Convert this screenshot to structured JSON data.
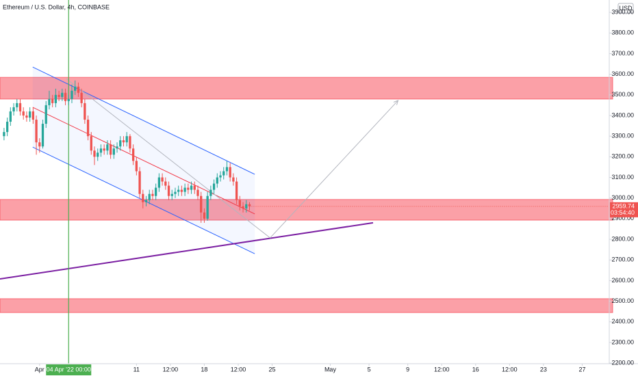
{
  "chart_data": {
    "type": "candlestick",
    "title": "Ethereum / U.S. Dollar, 4h, COINBASE",
    "currency": "USD",
    "x": [
      "2022-03-28 08:00",
      "2022-03-28 16:00",
      "2022-03-29 00:00",
      "2022-03-29 08:00",
      "2022-03-29 16:00",
      "2022-03-30 00:00",
      "2022-03-30 08:00",
      "2022-03-30 16:00",
      "2022-03-31 00:00",
      "2022-03-31 08:00",
      "2022-03-31 16:00",
      "2022-04-01 00:00",
      "2022-04-01 08:00",
      "2022-04-01 16:00",
      "2022-04-02 00:00",
      "2022-04-02 08:00",
      "2022-04-02 16:00",
      "2022-04-03 00:00",
      "2022-04-03 08:00",
      "2022-04-03 16:00",
      "2022-04-04 00:00",
      "2022-04-04 08:00",
      "2022-04-04 16:00",
      "2022-04-05 00:00",
      "2022-04-05 08:00",
      "2022-04-05 16:00",
      "2022-04-06 00:00",
      "2022-04-06 08:00",
      "2022-04-06 16:00",
      "2022-04-07 00:00",
      "2022-04-07 08:00",
      "2022-04-07 16:00",
      "2022-04-08 00:00",
      "2022-04-08 08:00",
      "2022-04-08 16:00",
      "2022-04-09 00:00",
      "2022-04-09 08:00",
      "2022-04-09 16:00",
      "2022-04-10 00:00",
      "2022-04-10 08:00",
      "2022-04-10 16:00",
      "2022-04-11 00:00",
      "2022-04-11 08:00",
      "2022-04-11 16:00",
      "2022-04-12 00:00",
      "2022-04-12 08:00",
      "2022-04-12 16:00",
      "2022-04-13 00:00",
      "2022-04-13 08:00",
      "2022-04-13 16:00",
      "2022-04-14 00:00",
      "2022-04-14 08:00",
      "2022-04-14 16:00",
      "2022-04-15 00:00",
      "2022-04-15 08:00",
      "2022-04-15 16:00",
      "2022-04-16 00:00",
      "2022-04-16 08:00",
      "2022-04-16 16:00",
      "2022-04-17 00:00",
      "2022-04-17 08:00",
      "2022-04-17 16:00",
      "2022-04-18 00:00",
      "2022-04-18 08:00",
      "2022-04-18 16:00",
      "2022-04-19 00:00",
      "2022-04-19 08:00",
      "2022-04-19 16:00",
      "2022-04-20 00:00",
      "2022-04-20 08:00",
      "2022-04-20 16:00",
      "2022-04-21 00:00",
      "2022-04-21 08:00",
      "2022-04-21 16:00",
      "2022-04-22 00:00",
      "2022-04-22 08:00",
      "2022-04-22 16:00"
    ],
    "open": [
      3300,
      3320,
      3370,
      3420,
      3440,
      3460,
      3420,
      3400,
      3390,
      3420,
      3380,
      3270,
      3250,
      3360,
      3450,
      3480,
      3460,
      3500,
      3490,
      3510,
      3470,
      3480,
      3520,
      3540,
      3510,
      3460,
      3380,
      3300,
      3230,
      3200,
      3220,
      3240,
      3230,
      3260,
      3210,
      3240,
      3250,
      3280,
      3270,
      3300,
      3240,
      3180,
      3130,
      3020,
      2980,
      2990,
      3020,
      3010,
      3050,
      3100,
      3080,
      3060,
      3010,
      3020,
      3030,
      3040,
      3030,
      3050,
      3040,
      3060,
      3040,
      3010,
      2930,
      2900,
      3010,
      3040,
      3070,
      3100,
      3110,
      3130,
      3150,
      3100,
      3080,
      2990,
      2960,
      2950,
      2970
    ],
    "high": [
      3340,
      3390,
      3440,
      3460,
      3480,
      3480,
      3440,
      3420,
      3440,
      3440,
      3400,
      3290,
      3380,
      3470,
      3520,
      3500,
      3530,
      3520,
      3530,
      3530,
      3500,
      3550,
      3570,
      3560,
      3530,
      3480,
      3400,
      3320,
      3250,
      3240,
      3260,
      3260,
      3280,
      3280,
      3260,
      3270,
      3300,
      3300,
      3320,
      3310,
      3260,
      3200,
      3150,
      3040,
      3010,
      3040,
      3040,
      3070,
      3120,
      3120,
      3100,
      3080,
      3040,
      3050,
      3060,
      3060,
      3070,
      3070,
      3080,
      3080,
      3060,
      3030,
      2950,
      3030,
      3060,
      3090,
      3120,
      3130,
      3150,
      3180,
      3170,
      3120,
      3100,
      3010,
      2980,
      2990,
      2980
    ],
    "low": [
      3280,
      3300,
      3350,
      3400,
      3420,
      3400,
      3380,
      3370,
      3370,
      3360,
      3210,
      3220,
      3240,
      3340,
      3430,
      3440,
      3440,
      3470,
      3470,
      3450,
      3450,
      3460,
      3500,
      3490,
      3440,
      3360,
      3280,
      3210,
      3160,
      3180,
      3200,
      3210,
      3210,
      3190,
      3190,
      3220,
      3230,
      3250,
      3250,
      3220,
      3160,
      3110,
      3000,
      2950,
      2960,
      2970,
      2990,
      2990,
      3030,
      3060,
      3040,
      2990,
      2990,
      3000,
      3010,
      3010,
      3010,
      3020,
      3020,
      3020,
      2990,
      2880,
      2880,
      2890,
      2990,
      3020,
      3050,
      3080,
      3090,
      3110,
      3080,
      3060,
      2970,
      2940,
      2930,
      2930,
      2940
    ],
    "close": [
      3320,
      3370,
      3420,
      3440,
      3460,
      3420,
      3400,
      3390,
      3420,
      3380,
      3270,
      3250,
      3360,
      3450,
      3480,
      3460,
      3500,
      3490,
      3510,
      3470,
      3480,
      3520,
      3540,
      3510,
      3460,
      3380,
      3300,
      3230,
      3200,
      3220,
      3240,
      3230,
      3260,
      3210,
      3240,
      3250,
      3280,
      3270,
      3300,
      3240,
      3180,
      3130,
      3020,
      2980,
      2990,
      3020,
      3010,
      3050,
      3100,
      3080,
      3060,
      3010,
      3020,
      3030,
      3040,
      3030,
      3050,
      3040,
      3060,
      3040,
      3010,
      2930,
      2900,
      3010,
      3040,
      3070,
      3100,
      3110,
      3130,
      3150,
      3100,
      3080,
      2990,
      2960,
      2950,
      2970,
      2959.74
    ],
    "up_color": "#26a69a",
    "down_color": "#ef5350",
    "xlim": [
      "2022-03-27 22:00",
      "2022-05-29 19:00"
    ],
    "ylim": [
      2197,
      3960
    ],
    "yticks": [
      {
        "value": 2200,
        "label": "2200.00"
      },
      {
        "value": 2300,
        "label": "2300.00"
      },
      {
        "value": 2400,
        "label": "2400.00"
      },
      {
        "value": 2500,
        "label": "2500.00"
      },
      {
        "value": 2600,
        "label": "2600.00"
      },
      {
        "value": 2700,
        "label": "2700.00"
      },
      {
        "value": 2800,
        "label": "2800.00"
      },
      {
        "value": 2900,
        "label": "2900.00"
      },
      {
        "value": 3000,
        "label": "3000.00"
      },
      {
        "value": 3100,
        "label": "3100.00"
      },
      {
        "value": 3200,
        "label": "3200.00"
      },
      {
        "value": 3300,
        "label": "3300.00"
      },
      {
        "value": 3400,
        "label": "3400.00"
      },
      {
        "value": 3500,
        "label": "3500.00"
      },
      {
        "value": 3600,
        "label": "3600.00"
      },
      {
        "value": 3700,
        "label": "3700.00"
      },
      {
        "value": 3800,
        "label": "3800.00"
      },
      {
        "value": 3900,
        "label": "3900.00"
      }
    ],
    "xticks": [
      {
        "value": "2022-04-01 00:00",
        "label": "Apr"
      },
      {
        "value": "2022-04-11 00:00",
        "label": "11"
      },
      {
        "value": "2022-04-14 12:00",
        "label": "12:00"
      },
      {
        "value": "2022-04-18 00:00",
        "label": "18"
      },
      {
        "value": "2022-04-21 12:00",
        "label": "12:00"
      },
      {
        "value": "2022-04-25 00:00",
        "label": "25"
      },
      {
        "value": "2022-05-01 00:00",
        "label": "May"
      },
      {
        "value": "2022-05-05 00:00",
        "label": "5"
      },
      {
        "value": "2022-05-09 00:00",
        "label": "9"
      },
      {
        "value": "2022-05-12 12:00",
        "label": "12:00"
      },
      {
        "value": "2022-05-16 00:00",
        "label": "16"
      },
      {
        "value": "2022-05-19 12:00",
        "label": "12:00"
      },
      {
        "value": "2022-05-23 00:00",
        "label": "23"
      },
      {
        "value": "2022-05-27 00:00",
        "label": "27"
      }
    ],
    "crosshair": {
      "x": "2022-04-04 00:00",
      "label": "04 Apr '22 00:00"
    },
    "countdown": "03:54:40",
    "zones": [
      {
        "low": 3480,
        "high": 3585
      },
      {
        "low": 2893,
        "high": 2993
      },
      {
        "low": 2445,
        "high": 2512
      }
    ],
    "drawings": {
      "channel_upper": [
        {
          "x": "2022-03-31 07:00",
          "y": 3635
        },
        {
          "x": "2022-04-23 05:00",
          "y": 3115
        }
      ],
      "channel_middle": [
        {
          "x": "2022-03-31 07:00",
          "y": 3440
        },
        {
          "x": "2022-04-23 05:00",
          "y": 2923
        }
      ],
      "channel_lower": [
        {
          "x": "2022-03-31 07:00",
          "y": 3247
        },
        {
          "x": "2022-04-23 05:00",
          "y": 2730
        }
      ],
      "trend_line": [
        {
          "x": "2022-03-27 22:00",
          "y": 2608
        },
        {
          "x": "2022-05-05 10:00",
          "y": 2880
        }
      ],
      "projection": [
        {
          "x": "2022-04-03 18:00",
          "y": 3579
        },
        {
          "x": "2022-04-24 19:00",
          "y": 2807
        },
        {
          "x": "2022-05-08 00:00",
          "y": 3473
        }
      ]
    }
  }
}
